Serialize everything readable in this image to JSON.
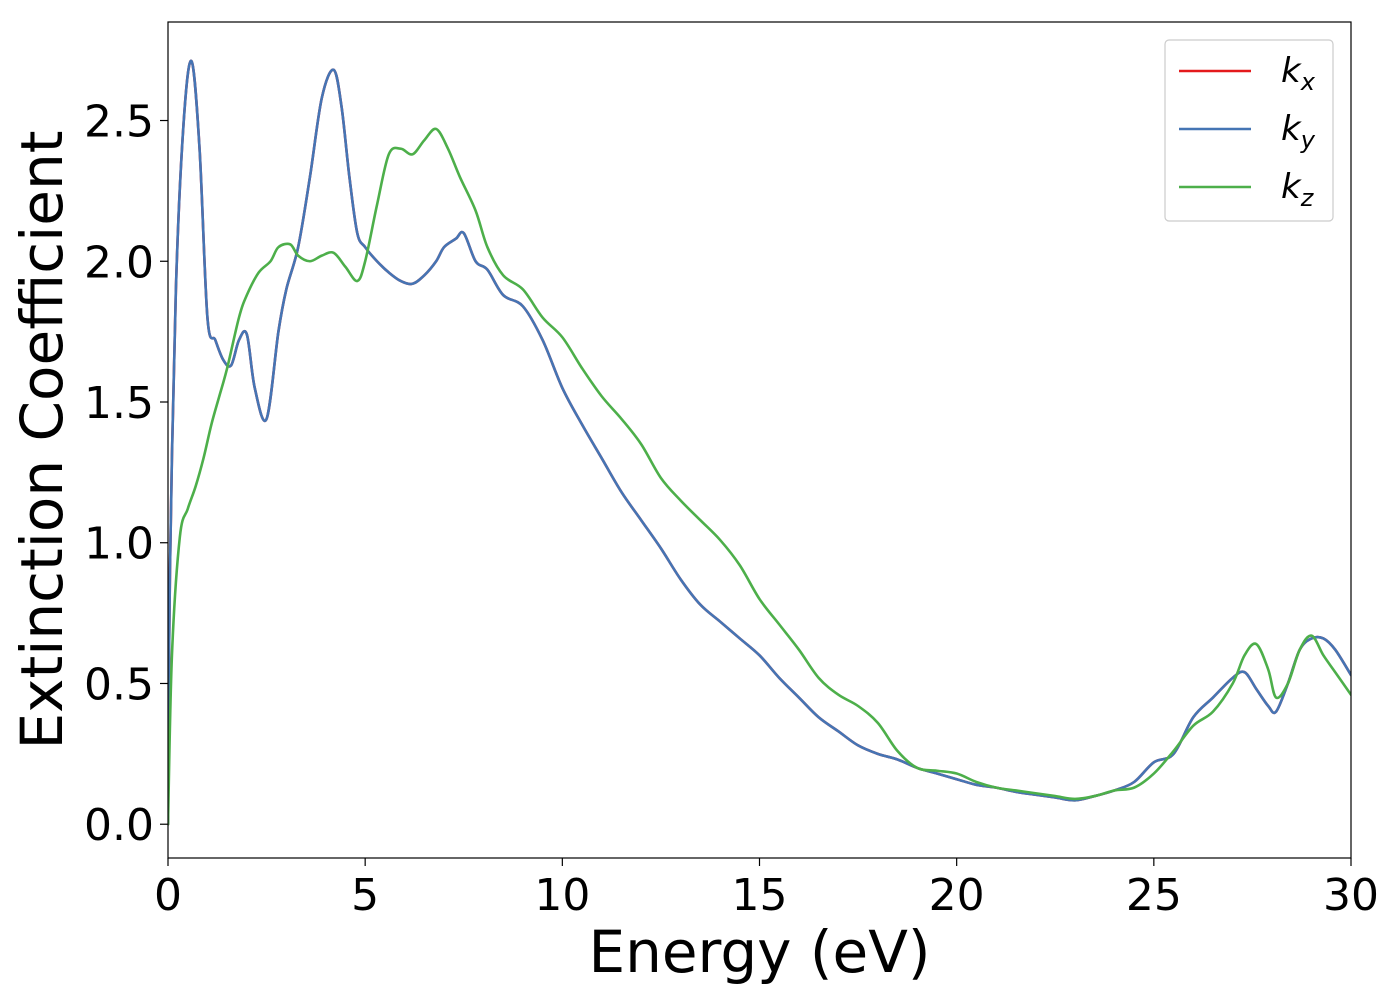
{
  "chart_data": {
    "type": "line",
    "xlabel": "Energy (eV)",
    "ylabel": "Extinction Coefficient",
    "xlim": [
      0,
      30
    ],
    "ylim": [
      -0.12,
      2.85
    ],
    "xticks": [
      0,
      5,
      10,
      15,
      20,
      25,
      30
    ],
    "xtick_labels": [
      "0",
      "5",
      "10",
      "15",
      "20",
      "25",
      "30"
    ],
    "yticks": [
      0.0,
      0.5,
      1.0,
      1.5,
      2.0,
      2.5
    ],
    "ytick_labels": [
      "0.0",
      "0.5",
      "1.0",
      "1.5",
      "2.0",
      "2.5"
    ],
    "grid": false,
    "legend_placement": "top-right",
    "series": [
      {
        "name": "k_x",
        "legend_main": "k",
        "legend_sub": "x",
        "color": "#e41a1c",
        "x": [
          0,
          0.05,
          0.2,
          0.4,
          0.6,
          0.8,
          1.0,
          1.2,
          1.4,
          1.6,
          1.8,
          2.0,
          2.2,
          2.5,
          2.8,
          3.0,
          3.3,
          3.6,
          3.9,
          4.2,
          4.4,
          4.6,
          4.8,
          5.0,
          5.3,
          5.6,
          5.9,
          6.2,
          6.5,
          6.8,
          7.0,
          7.3,
          7.5,
          7.8,
          8.1,
          8.5,
          9.0,
          9.5,
          10.0,
          10.5,
          11.0,
          11.5,
          12.0,
          12.5,
          13.0,
          13.5,
          14.0,
          14.5,
          15.0,
          15.5,
          16.0,
          16.5,
          17.0,
          17.5,
          18.0,
          18.5,
          19.0,
          19.5,
          20.0,
          20.5,
          21.0,
          21.5,
          22.0,
          22.5,
          23.0,
          23.5,
          24.0,
          24.5,
          25.0,
          25.5,
          26.0,
          26.5,
          27.0,
          27.3,
          27.6,
          27.9,
          28.1,
          28.4,
          28.7,
          29.0,
          29.3,
          29.6,
          30.0
        ],
        "y": [
          0.0,
          0.9,
          1.9,
          2.5,
          2.71,
          2.4,
          1.8,
          1.72,
          1.65,
          1.63,
          1.72,
          1.74,
          1.55,
          1.44,
          1.75,
          1.9,
          2.05,
          2.3,
          2.58,
          2.68,
          2.55,
          2.3,
          2.1,
          2.05,
          2.0,
          1.96,
          1.93,
          1.92,
          1.95,
          2.0,
          2.05,
          2.08,
          2.1,
          2.0,
          1.97,
          1.88,
          1.84,
          1.72,
          1.55,
          1.42,
          1.3,
          1.18,
          1.08,
          0.98,
          0.87,
          0.78,
          0.72,
          0.66,
          0.6,
          0.52,
          0.45,
          0.38,
          0.33,
          0.28,
          0.25,
          0.23,
          0.2,
          0.18,
          0.16,
          0.14,
          0.13,
          0.115,
          0.105,
          0.095,
          0.085,
          0.1,
          0.12,
          0.15,
          0.22,
          0.25,
          0.38,
          0.45,
          0.52,
          0.54,
          0.48,
          0.42,
          0.4,
          0.5,
          0.62,
          0.66,
          0.66,
          0.62,
          0.53
        ]
      },
      {
        "name": "k_y",
        "legend_main": "k",
        "legend_sub": "y",
        "color": "#4575b4",
        "x": [
          0,
          0.05,
          0.2,
          0.4,
          0.6,
          0.8,
          1.0,
          1.2,
          1.4,
          1.6,
          1.8,
          2.0,
          2.2,
          2.5,
          2.8,
          3.0,
          3.3,
          3.6,
          3.9,
          4.2,
          4.4,
          4.6,
          4.8,
          5.0,
          5.3,
          5.6,
          5.9,
          6.2,
          6.5,
          6.8,
          7.0,
          7.3,
          7.5,
          7.8,
          8.1,
          8.5,
          9.0,
          9.5,
          10.0,
          10.5,
          11.0,
          11.5,
          12.0,
          12.5,
          13.0,
          13.5,
          14.0,
          14.5,
          15.0,
          15.5,
          16.0,
          16.5,
          17.0,
          17.5,
          18.0,
          18.5,
          19.0,
          19.5,
          20.0,
          20.5,
          21.0,
          21.5,
          22.0,
          22.5,
          23.0,
          23.5,
          24.0,
          24.5,
          25.0,
          25.5,
          26.0,
          26.5,
          27.0,
          27.3,
          27.6,
          27.9,
          28.1,
          28.4,
          28.7,
          29.0,
          29.3,
          29.6,
          30.0
        ],
        "y": [
          0.0,
          0.9,
          1.9,
          2.5,
          2.71,
          2.4,
          1.8,
          1.72,
          1.65,
          1.63,
          1.72,
          1.74,
          1.55,
          1.44,
          1.75,
          1.9,
          2.05,
          2.3,
          2.58,
          2.68,
          2.55,
          2.3,
          2.1,
          2.05,
          2.0,
          1.96,
          1.93,
          1.92,
          1.95,
          2.0,
          2.05,
          2.08,
          2.1,
          2.0,
          1.97,
          1.88,
          1.84,
          1.72,
          1.55,
          1.42,
          1.3,
          1.18,
          1.08,
          0.98,
          0.87,
          0.78,
          0.72,
          0.66,
          0.6,
          0.52,
          0.45,
          0.38,
          0.33,
          0.28,
          0.25,
          0.23,
          0.2,
          0.18,
          0.16,
          0.14,
          0.13,
          0.115,
          0.105,
          0.095,
          0.085,
          0.1,
          0.12,
          0.15,
          0.22,
          0.25,
          0.38,
          0.45,
          0.52,
          0.54,
          0.48,
          0.42,
          0.4,
          0.5,
          0.62,
          0.66,
          0.66,
          0.62,
          0.53
        ]
      },
      {
        "name": "k_z",
        "legend_main": "k",
        "legend_sub": "z",
        "color": "#4daf4a",
        "x": [
          0,
          0.1,
          0.3,
          0.5,
          0.7,
          0.9,
          1.1,
          1.3,
          1.5,
          1.8,
          2.0,
          2.3,
          2.6,
          2.8,
          3.1,
          3.3,
          3.6,
          3.9,
          4.2,
          4.5,
          4.8,
          5.0,
          5.3,
          5.6,
          5.9,
          6.2,
          6.5,
          6.8,
          7.1,
          7.4,
          7.8,
          8.1,
          8.5,
          9.0,
          9.5,
          10.0,
          10.5,
          11.0,
          11.5,
          12.0,
          12.5,
          13.0,
          13.5,
          14.0,
          14.5,
          15.0,
          15.5,
          16.0,
          16.5,
          17.0,
          17.5,
          18.0,
          18.5,
          19.0,
          19.5,
          20.0,
          20.5,
          21.0,
          21.5,
          22.0,
          22.5,
          23.0,
          23.5,
          24.0,
          24.5,
          25.0,
          25.5,
          26.0,
          26.5,
          27.0,
          27.3,
          27.6,
          27.9,
          28.1,
          28.4,
          28.7,
          29.0,
          29.3,
          29.6,
          30.0
        ],
        "y": [
          0.0,
          0.6,
          1.02,
          1.12,
          1.2,
          1.3,
          1.42,
          1.52,
          1.62,
          1.8,
          1.88,
          1.96,
          2.0,
          2.05,
          2.06,
          2.02,
          2.0,
          2.02,
          2.03,
          1.98,
          1.93,
          2.0,
          2.2,
          2.38,
          2.4,
          2.38,
          2.43,
          2.47,
          2.4,
          2.3,
          2.18,
          2.05,
          1.95,
          1.9,
          1.8,
          1.73,
          1.62,
          1.52,
          1.44,
          1.35,
          1.23,
          1.15,
          1.08,
          1.01,
          0.92,
          0.8,
          0.71,
          0.62,
          0.52,
          0.46,
          0.42,
          0.36,
          0.26,
          0.2,
          0.19,
          0.18,
          0.15,
          0.13,
          0.12,
          0.11,
          0.1,
          0.09,
          0.1,
          0.12,
          0.13,
          0.18,
          0.26,
          0.35,
          0.4,
          0.5,
          0.6,
          0.64,
          0.55,
          0.45,
          0.5,
          0.62,
          0.67,
          0.6,
          0.54,
          0.46
        ]
      }
    ]
  }
}
